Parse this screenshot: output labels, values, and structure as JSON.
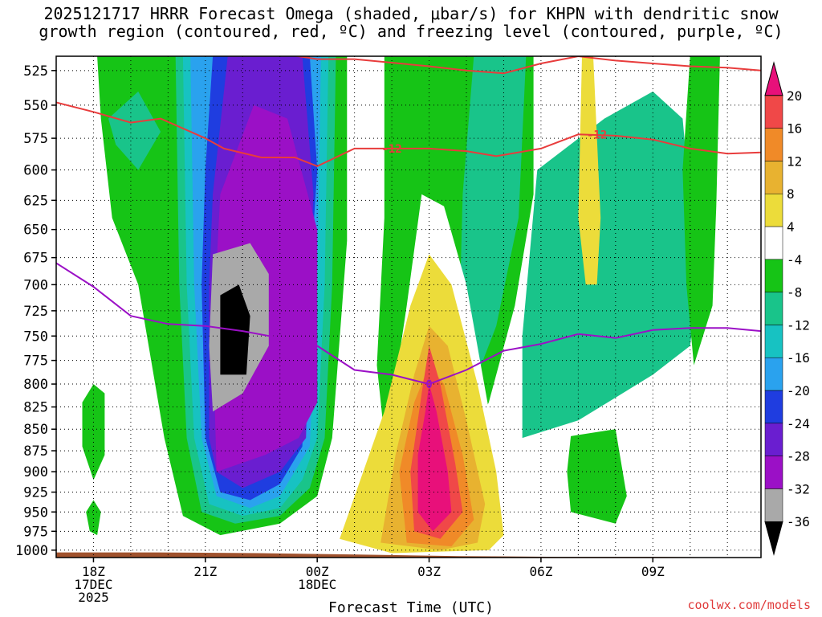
{
  "title_line1": "2025121717 HRRR Forecast Omega (shaded, μbar/s) for KHPN with dendritic snow",
  "title_line2": "growth region (contoured, red, ºC) and freezing level (contoured, purple, ºC)",
  "credit": "coolwx.com/models",
  "chart_data": {
    "type": "heatmap",
    "title": "2025121717 HRRR Forecast Omega (shaded, μbar/s) for KHPN with dendritic snow growth region (contoured, red, ºC) and freezing level (contoured, purple, ºC)",
    "xlabel": "Forecast Time (UTC)",
    "ylabel": "",
    "x_range_hours_utc": [
      17.0,
      35.9
    ],
    "ylim": [
      1010,
      515
    ],
    "y_scale": "log",
    "grid": true,
    "y_ticks": [
      525,
      550,
      575,
      600,
      625,
      650,
      675,
      700,
      725,
      750,
      775,
      800,
      825,
      850,
      875,
      900,
      925,
      950,
      975,
      1000
    ],
    "x_ticks": [
      {
        "hour": 18,
        "lines": [
          "18Z",
          "17DEC",
          "2025"
        ]
      },
      {
        "hour": 21,
        "lines": [
          "21Z"
        ]
      },
      {
        "hour": 24,
        "lines": [
          "00Z",
          "18DEC"
        ]
      },
      {
        "hour": 27,
        "lines": [
          "03Z"
        ]
      },
      {
        "hour": 30,
        "lines": [
          "06Z"
        ]
      },
      {
        "hour": 33,
        "lines": [
          "09Z"
        ]
      }
    ],
    "colorbar": {
      "levels": [
        -36,
        -32,
        -28,
        -24,
        -20,
        -16,
        -12,
        -8,
        -4,
        4,
        8,
        12,
        16,
        20
      ],
      "colors": [
        "#000000",
        "#a9a9a9",
        "#9b10c6",
        "#6a1ed0",
        "#1f3de0",
        "#2aa2ee",
        "#17c2c2",
        "#19c48a",
        "#16c416",
        "#ffffff",
        "#ecdc3a",
        "#e8b230",
        "#f08a28",
        "#f04848",
        "#e8107a"
      ]
    },
    "omega_features": [
      {
        "name": "ascent_core",
        "hour": 21.5,
        "pressure": 735,
        "omega": -38
      },
      {
        "name": "ascent_lobe_upper",
        "hour": 22.8,
        "pressure": 620,
        "omega": -30
      },
      {
        "name": "descent_core",
        "hour": 27.0,
        "pressure": 890,
        "omega": 22
      }
    ],
    "contours": [
      {
        "name": "dendritic -12C",
        "color": "#e83c3c",
        "label": "-12",
        "points": [
          [
            17.0,
            548
          ],
          [
            18.0,
            555
          ],
          [
            19.0,
            563
          ],
          [
            19.8,
            560
          ],
          [
            21.0,
            575
          ],
          [
            21.5,
            583
          ],
          [
            22.5,
            590
          ],
          [
            23.4,
            590
          ],
          [
            24.0,
            597
          ],
          [
            25.0,
            583
          ],
          [
            26.0,
            583
          ],
          [
            27.0,
            583
          ],
          [
            28.0,
            585
          ],
          [
            28.8,
            589
          ],
          [
            30.0,
            583
          ],
          [
            31.0,
            572
          ],
          [
            32.0,
            573
          ],
          [
            33.0,
            576
          ],
          [
            34.0,
            583
          ],
          [
            35.0,
            587
          ],
          [
            35.9,
            586
          ]
        ]
      },
      {
        "name": "dendritic -12C upper",
        "color": "#e83c3c",
        "label": "",
        "points": [
          [
            21.8,
            503
          ],
          [
            23.0,
            513
          ],
          [
            24.0,
            517
          ],
          [
            25.0,
            517
          ],
          [
            27.0,
            522
          ],
          [
            28.0,
            525
          ],
          [
            29.0,
            527
          ],
          [
            30.0,
            520
          ],
          [
            31.0,
            515
          ],
          [
            32.0,
            518
          ],
          [
            33.0,
            520
          ],
          [
            34.0,
            522
          ],
          [
            35.0,
            523
          ],
          [
            35.9,
            525
          ]
        ]
      },
      {
        "name": "freezing level 0C",
        "color": "#9b10c6",
        "label": "0",
        "points": [
          [
            17.0,
            680
          ],
          [
            18.0,
            702
          ],
          [
            19.0,
            730
          ],
          [
            20.0,
            738
          ],
          [
            21.0,
            740
          ],
          [
            22.0,
            745
          ],
          [
            23.0,
            752
          ],
          [
            24.0,
            760
          ],
          [
            25.0,
            785
          ],
          [
            26.0,
            790
          ],
          [
            27.0,
            800
          ],
          [
            28.0,
            785
          ],
          [
            29.0,
            765
          ],
          [
            30.0,
            758
          ],
          [
            31.0,
            748
          ],
          [
            32.0,
            752
          ],
          [
            33.0,
            744
          ],
          [
            34.0,
            742
          ],
          [
            35.0,
            742
          ],
          [
            35.9,
            745
          ]
        ]
      }
    ],
    "terrain_pressure": [
      1003,
      1003,
      1004,
      1006,
      1008,
      1009,
      1009,
      1010
    ]
  }
}
